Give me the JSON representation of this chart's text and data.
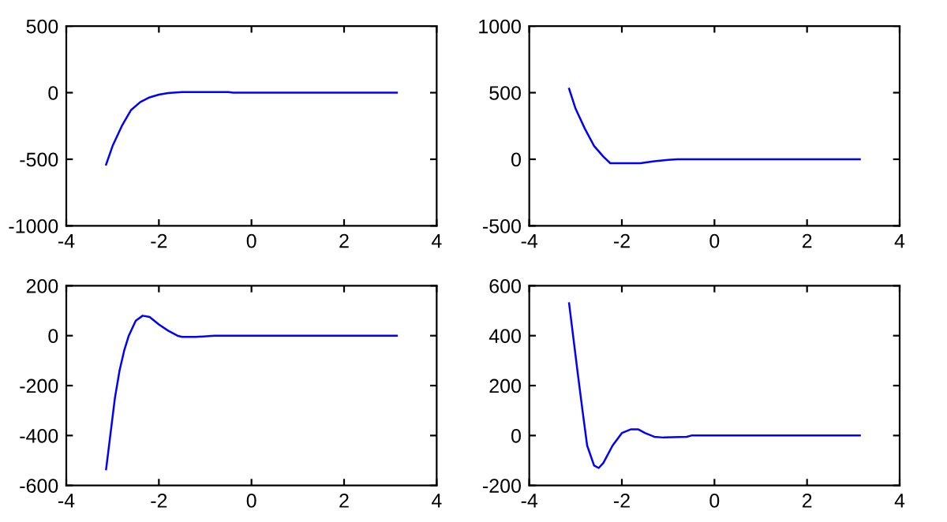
{
  "chart_data": [
    {
      "type": "line",
      "x": [
        -3.14,
        -3.0,
        -2.8,
        -2.6,
        -2.4,
        -2.2,
        -2.0,
        -1.8,
        -1.5,
        -1.0,
        -0.5,
        -0.4,
        0,
        3.14
      ],
      "series": [
        {
          "color": "#0000ff",
          "values": [
            -540,
            -400,
            -250,
            -130,
            -70,
            -35,
            -15,
            -3,
            5,
            5,
            4,
            0,
            0,
            0
          ]
        }
      ],
      "xlim": [
        -4,
        4
      ],
      "xticks": [
        -4,
        -2,
        0,
        2,
        4
      ],
      "ylim": [
        -1000,
        500
      ],
      "yticks": [
        -1000,
        -500,
        0,
        500
      ],
      "grid": false,
      "legend": false
    },
    {
      "type": "line",
      "x": [
        -3.14,
        -3.0,
        -2.8,
        -2.6,
        -2.4,
        -2.25,
        -2.0,
        -1.6,
        -1.3,
        -1.0,
        -0.8,
        3.14
      ],
      "series": [
        {
          "color": "#0000ff",
          "values": [
            530,
            380,
            230,
            100,
            20,
            -30,
            -30,
            -30,
            -15,
            -5,
            0,
            0
          ]
        }
      ],
      "xlim": [
        -4,
        4
      ],
      "xticks": [
        -4,
        -2,
        0,
        2,
        4
      ],
      "ylim": [
        -500,
        1000
      ],
      "yticks": [
        -500,
        0,
        500,
        1000
      ],
      "grid": false,
      "legend": false
    },
    {
      "type": "line",
      "x": [
        -3.14,
        -3.05,
        -2.95,
        -2.85,
        -2.75,
        -2.65,
        -2.5,
        -2.35,
        -2.2,
        -2.0,
        -1.8,
        -1.6,
        -1.5,
        -1.2,
        -0.8,
        3.14
      ],
      "series": [
        {
          "color": "#0000ff",
          "values": [
            -535,
            -400,
            -250,
            -140,
            -60,
            0,
            60,
            80,
            75,
            45,
            20,
            0,
            -5,
            -5,
            0,
            0
          ]
        }
      ],
      "xlim": [
        -4,
        4
      ],
      "xticks": [
        -4,
        -2,
        0,
        2,
        4
      ],
      "ylim": [
        -600,
        200
      ],
      "yticks": [
        -600,
        -400,
        -200,
        0,
        200
      ],
      "grid": false,
      "legend": false
    },
    {
      "type": "line",
      "x": [
        -3.14,
        -2.95,
        -2.85,
        -2.75,
        -2.6,
        -2.5,
        -2.4,
        -2.2,
        -2.0,
        -1.8,
        -1.65,
        -1.5,
        -1.3,
        -1.1,
        -0.6,
        -0.5,
        3.14
      ],
      "series": [
        {
          "color": "#0000ff",
          "values": [
            530,
            245,
            100,
            -40,
            -120,
            -130,
            -110,
            -40,
            10,
            25,
            25,
            10,
            -5,
            -8,
            -5,
            0,
            0
          ]
        }
      ],
      "xlim": [
        -4,
        4
      ],
      "xticks": [
        -4,
        -2,
        0,
        2,
        4
      ],
      "ylim": [
        -200,
        600
      ],
      "yticks": [
        -200,
        0,
        200,
        400,
        600
      ],
      "grid": false,
      "legend": false
    }
  ]
}
